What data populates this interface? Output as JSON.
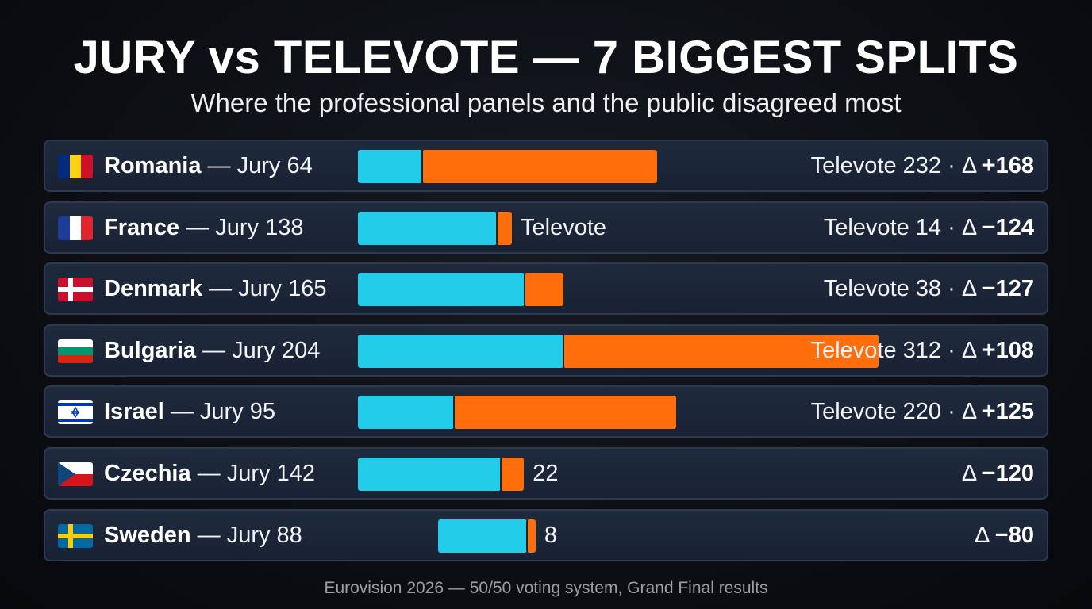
{
  "title": "JURY vs TELEVOTE — 7 BIGGEST SPLITS",
  "subtitle": "Where the professional panels and the public disagreed most",
  "footer": "Eurovision 2026 — 50/50 voting system, Grand Final results",
  "colors": {
    "jury": "#22cdea",
    "televote": "#ff6e0a",
    "row_bg": "#1d2739"
  },
  "chart_data": {
    "type": "bar",
    "stacked": true,
    "orientation": "horizontal",
    "title": "JURY vs TELEVOTE — 7 BIGGEST SPLITS",
    "subtitle": "Where the professional panels and the public disagreed most",
    "categories": [
      "Romania",
      "France",
      "Denmark",
      "Bulgaria",
      "Israel",
      "Czechia",
      "Sweden"
    ],
    "series": [
      {
        "name": "Jury",
        "values": [
          64,
          138,
          165,
          204,
          95,
          142,
          88
        ]
      },
      {
        "name": "Televote",
        "values": [
          232,
          14,
          38,
          312,
          220,
          22,
          8
        ]
      }
    ],
    "rows": [
      {
        "country": "Romania",
        "jury_text": " — Jury 64",
        "flag": "romania-flag",
        "right_text": "Televote 232 · Δ ",
        "delta_text": "+168",
        "mid_label": ""
      },
      {
        "country": "France",
        "jury_text": " — Jury 138",
        "flag": "france-flag",
        "right_text": "Televote 14 · Δ ",
        "delta_text": "−124",
        "mid_label": "Televote"
      },
      {
        "country": "Denmark",
        "jury_text": " — Jury 165",
        "flag": "denmark-flag",
        "right_text": "Televote 38 · Δ ",
        "delta_text": "−127",
        "mid_label": ""
      },
      {
        "country": "Bulgaria",
        "jury_text": " — Jury 204",
        "flag": "bulgaria-flag",
        "right_text": "Televote 312 · Δ ",
        "delta_text": "+108",
        "mid_label": ""
      },
      {
        "country": "Israel",
        "jury_text": " — Jury 95",
        "flag": "israel-flag",
        "right_text": "Televote 220 · Δ ",
        "delta_text": "+125",
        "mid_label": ""
      },
      {
        "country": "Czechia",
        "jury_text": " — Jury 142",
        "flag": "czechia-flag",
        "right_text": "Δ ",
        "delta_text": "−120",
        "mid_label": "22"
      },
      {
        "country": "Sweden",
        "jury_text": " — Jury 88",
        "flag": "sweden-flag",
        "right_text": "Δ ",
        "delta_text": "−80",
        "mid_label": "8"
      }
    ]
  }
}
